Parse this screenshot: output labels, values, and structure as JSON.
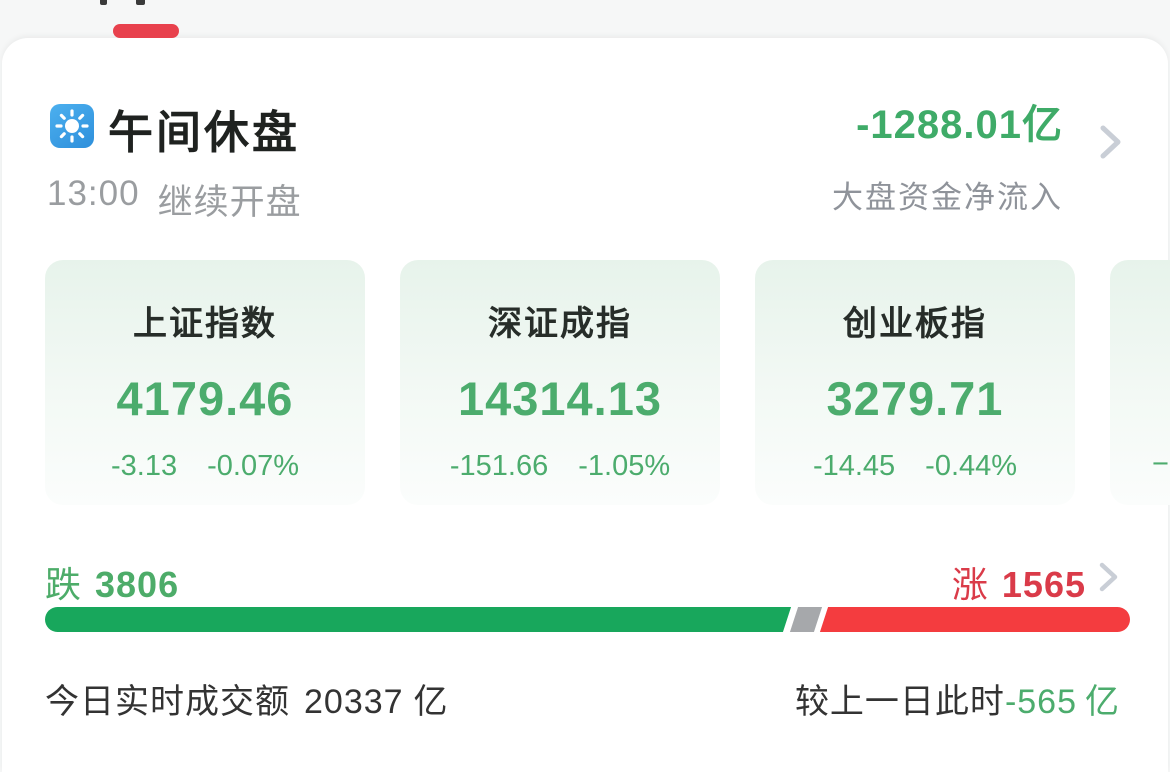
{
  "tab_bar": {
    "active_tab_indicator": "red-pill"
  },
  "header": {
    "icon": "sun-icon",
    "title": "午间休盘",
    "time": "13:00",
    "status": "继续开盘",
    "net_flow": {
      "value": "-1288.01亿",
      "label": "大盘资金净流入"
    }
  },
  "index_cards": [
    {
      "name": "上证指数",
      "value": "4179.46",
      "change": "-3.13",
      "change_pct": "-0.07%"
    },
    {
      "name": "深证成指",
      "value": "14314.13",
      "change": "-151.66",
      "change_pct": "-1.05%"
    },
    {
      "name": "创业板指",
      "value": "3279.71",
      "change": "-14.45",
      "change_pct": "-0.44%"
    },
    {
      "partial_change": "−"
    }
  ],
  "market_breadth": {
    "fall_label": "跌",
    "fall_count": "3806",
    "rise_label": "涨",
    "rise_count": "1565",
    "bar_fall_pct": 68.4,
    "bar_flat_pct": 2.2,
    "bar_rise_pct": 28.2,
    "bar_gap_pct": 0.6
  },
  "turnover": {
    "today_label": "今日实时成交额",
    "today_value": "20337",
    "today_unit": "亿",
    "compare_label": "较上一日此时",
    "compare_value": "-565",
    "compare_unit": "亿"
  },
  "colors": {
    "green_text": "#4cac6d",
    "red_text": "#da3b49",
    "bar_green": "#18a75c",
    "bar_red": "#f43c3f",
    "bar_gray": "#a6a8ab",
    "pill_red": "#e8414d",
    "accent_blue": "#359ae3"
  }
}
